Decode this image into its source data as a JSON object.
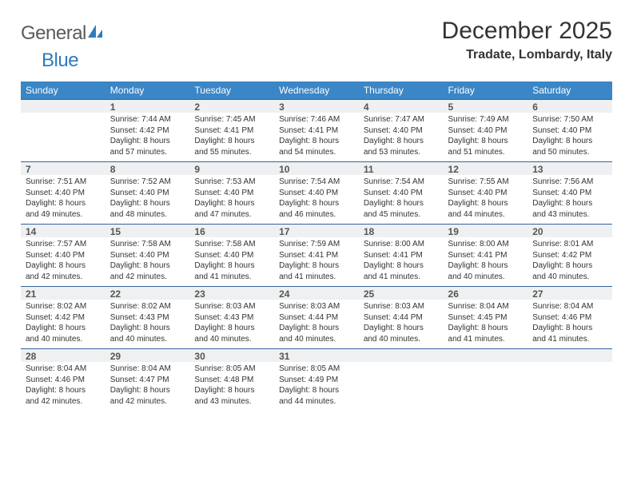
{
  "brand": {
    "g": "General",
    "b": "Blue"
  },
  "title": "December 2025",
  "location": "Tradate, Lombardy, Italy",
  "colors": {
    "header_bg": "#3b86c6",
    "header_fg": "#ffffff",
    "daynum_bg": "#eef0f1",
    "rule": "#336699",
    "logo_blue": "#2f7bbf"
  },
  "weekdays": [
    "Sunday",
    "Monday",
    "Tuesday",
    "Wednesday",
    "Thursday",
    "Friday",
    "Saturday"
  ],
  "weeks": [
    [
      null,
      {
        "n": "1",
        "sr": "7:44 AM",
        "ss": "4:42 PM",
        "dl": "8 hours and 57 minutes."
      },
      {
        "n": "2",
        "sr": "7:45 AM",
        "ss": "4:41 PM",
        "dl": "8 hours and 55 minutes."
      },
      {
        "n": "3",
        "sr": "7:46 AM",
        "ss": "4:41 PM",
        "dl": "8 hours and 54 minutes."
      },
      {
        "n": "4",
        "sr": "7:47 AM",
        "ss": "4:40 PM",
        "dl": "8 hours and 53 minutes."
      },
      {
        "n": "5",
        "sr": "7:49 AM",
        "ss": "4:40 PM",
        "dl": "8 hours and 51 minutes."
      },
      {
        "n": "6",
        "sr": "7:50 AM",
        "ss": "4:40 PM",
        "dl": "8 hours and 50 minutes."
      }
    ],
    [
      {
        "n": "7",
        "sr": "7:51 AM",
        "ss": "4:40 PM",
        "dl": "8 hours and 49 minutes."
      },
      {
        "n": "8",
        "sr": "7:52 AM",
        "ss": "4:40 PM",
        "dl": "8 hours and 48 minutes."
      },
      {
        "n": "9",
        "sr": "7:53 AM",
        "ss": "4:40 PM",
        "dl": "8 hours and 47 minutes."
      },
      {
        "n": "10",
        "sr": "7:54 AM",
        "ss": "4:40 PM",
        "dl": "8 hours and 46 minutes."
      },
      {
        "n": "11",
        "sr": "7:54 AM",
        "ss": "4:40 PM",
        "dl": "8 hours and 45 minutes."
      },
      {
        "n": "12",
        "sr": "7:55 AM",
        "ss": "4:40 PM",
        "dl": "8 hours and 44 minutes."
      },
      {
        "n": "13",
        "sr": "7:56 AM",
        "ss": "4:40 PM",
        "dl": "8 hours and 43 minutes."
      }
    ],
    [
      {
        "n": "14",
        "sr": "7:57 AM",
        "ss": "4:40 PM",
        "dl": "8 hours and 42 minutes."
      },
      {
        "n": "15",
        "sr": "7:58 AM",
        "ss": "4:40 PM",
        "dl": "8 hours and 42 minutes."
      },
      {
        "n": "16",
        "sr": "7:58 AM",
        "ss": "4:40 PM",
        "dl": "8 hours and 41 minutes."
      },
      {
        "n": "17",
        "sr": "7:59 AM",
        "ss": "4:41 PM",
        "dl": "8 hours and 41 minutes."
      },
      {
        "n": "18",
        "sr": "8:00 AM",
        "ss": "4:41 PM",
        "dl": "8 hours and 41 minutes."
      },
      {
        "n": "19",
        "sr": "8:00 AM",
        "ss": "4:41 PM",
        "dl": "8 hours and 40 minutes."
      },
      {
        "n": "20",
        "sr": "8:01 AM",
        "ss": "4:42 PM",
        "dl": "8 hours and 40 minutes."
      }
    ],
    [
      {
        "n": "21",
        "sr": "8:02 AM",
        "ss": "4:42 PM",
        "dl": "8 hours and 40 minutes."
      },
      {
        "n": "22",
        "sr": "8:02 AM",
        "ss": "4:43 PM",
        "dl": "8 hours and 40 minutes."
      },
      {
        "n": "23",
        "sr": "8:03 AM",
        "ss": "4:43 PM",
        "dl": "8 hours and 40 minutes."
      },
      {
        "n": "24",
        "sr": "8:03 AM",
        "ss": "4:44 PM",
        "dl": "8 hours and 40 minutes."
      },
      {
        "n": "25",
        "sr": "8:03 AM",
        "ss": "4:44 PM",
        "dl": "8 hours and 40 minutes."
      },
      {
        "n": "26",
        "sr": "8:04 AM",
        "ss": "4:45 PM",
        "dl": "8 hours and 41 minutes."
      },
      {
        "n": "27",
        "sr": "8:04 AM",
        "ss": "4:46 PM",
        "dl": "8 hours and 41 minutes."
      }
    ],
    [
      {
        "n": "28",
        "sr": "8:04 AM",
        "ss": "4:46 PM",
        "dl": "8 hours and 42 minutes."
      },
      {
        "n": "29",
        "sr": "8:04 AM",
        "ss": "4:47 PM",
        "dl": "8 hours and 42 minutes."
      },
      {
        "n": "30",
        "sr": "8:05 AM",
        "ss": "4:48 PM",
        "dl": "8 hours and 43 minutes."
      },
      {
        "n": "31",
        "sr": "8:05 AM",
        "ss": "4:49 PM",
        "dl": "8 hours and 44 minutes."
      },
      null,
      null,
      null
    ]
  ],
  "labels": {
    "sunrise": "Sunrise:",
    "sunset": "Sunset:",
    "daylight": "Daylight:"
  }
}
